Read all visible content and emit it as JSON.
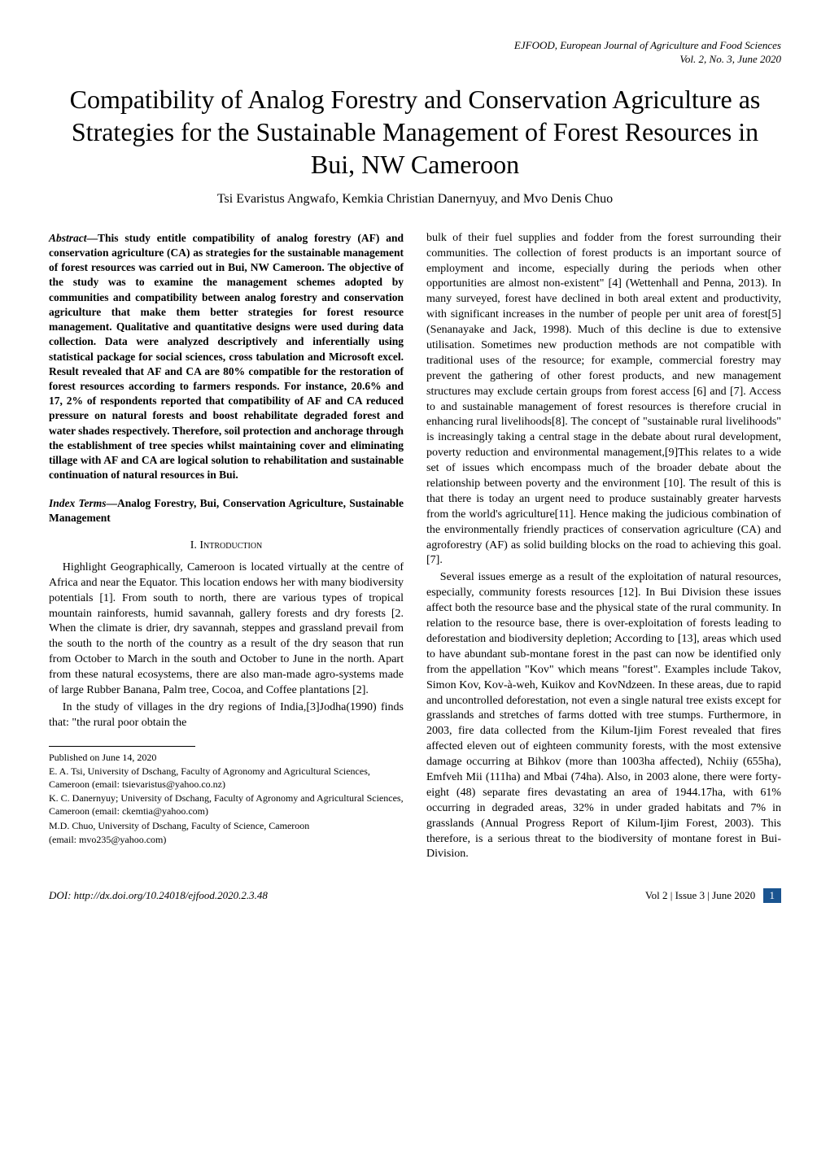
{
  "journal": {
    "name": "EJFOOD, European Journal of Agriculture and Food Sciences",
    "issue": "Vol. 2, No. 3, June 2020"
  },
  "title": "Compatibility of Analog Forestry and Conservation Agriculture as Strategies for the Sustainable Management of Forest Resources in Bui, NW Cameroon",
  "authors": "Tsi Evaristus Angwafo, Kemkia Christian Danernyuy, and Mvo Denis Chuo",
  "abstract": {
    "label": "Abstract",
    "text": "—This study entitle compatibility of analog forestry (AF) and conservation agriculture (CA) as strategies for the sustainable management of forest resources was carried out in Bui, NW Cameroon. The objective of the study was to examine the management schemes adopted by communities and compatibility between analog forestry and conservation agriculture that make them better strategies for forest resource management. Qualitative and quantitative designs were used during data collection. Data were analyzed descriptively and inferentially using statistical package for social sciences, cross tabulation and Microsoft excel. Result revealed that AF and CA are 80% compatible for the restoration of forest resources according to farmers responds. For instance, 20.6% and 17, 2% of respondents reported that compatibility of AF and CA reduced pressure on natural forests and boost rehabilitate degraded forest and water shades respectively. Therefore, soil protection and anchorage through the establishment of tree species whilst maintaining cover and eliminating tillage with AF and CA are logical solution to rehabilitation and sustainable continuation of natural resources in Bui."
  },
  "index_terms": {
    "label": "Index Terms",
    "text": "—Analog Forestry, Bui, Conservation Agriculture, Sustainable Management"
  },
  "section1": {
    "num": "I.",
    "title": "Introduction"
  },
  "intro_p1": "Highlight Geographically, Cameroon is located virtually at the centre of Africa and near the Equator. This location endows her with many biodiversity potentials [1]. From south to north, there are various types of tropical mountain rainforests, humid savannah, gallery forests and dry forests [2. When the climate is drier, dry savannah, steppes and grassland prevail from the south to the north of the country as a result of the dry season that run from October to March in the south and October to June in the north. Apart from these natural ecosystems, there are also man-made agro-systems made of large Rubber Banana, Palm tree, Cocoa, and Coffee plantations [2].",
  "intro_p2": "In the study of villages in the dry regions of India,[3]Jodha(1990) finds that: \"the rural poor obtain the",
  "right_p1": "bulk of their fuel supplies and fodder from the forest surrounding their communities. The collection of forest products is an important source of employment and income, especially during the periods when other opportunities are almost non-existent\" [4] (Wettenhall and Penna, 2013). In many surveyed, forest have declined in both areal extent and productivity, with significant increases in the number of people per unit area of forest[5] (Senanayake and Jack, 1998). Much of this decline is due to extensive utilisation. Sometimes new production methods are not compatible with traditional uses of the resource; for example, commercial forestry may prevent the gathering of other forest products, and new management structures may exclude certain groups from forest access [6] and [7]. Access to and sustainable management of forest resources is therefore crucial in enhancing rural livelihoods[8]. The concept of \"sustainable rural livelihoods\" is increasingly taking a central stage in the debate about rural development, poverty reduction and environmental management,[9]This relates to a wide set of issues which encompass much of the broader debate about the relationship between poverty and the environment [10]. The result of this is that there is today an urgent need to produce sustainably greater harvests from the world's agriculture[11]. Hence making the judicious combination of the environmentally friendly practices of conservation agriculture (CA) and agroforestry (AF) as solid building blocks on the road to achieving this goal. [7].",
  "right_p2": "Several issues emerge as a result of the exploitation of natural resources, especially, community forests resources [12]. In Bui Division these issues affect both the resource base and the physical state of the rural community. In relation to the resource base, there is over-exploitation of forests leading to deforestation and biodiversity depletion; According to [13], areas which used to have abundant sub-montane forest in the past can now be identified only from the appellation \"Kov\" which means \"forest\". Examples include Takov, Simon Kov, Kov-à-weh, Kuikov and KovNdzeen. In these areas, due to rapid and uncontrolled deforestation, not even a single natural tree exists except for grasslands and stretches of farms dotted with tree stumps. Furthermore, in 2003, fire data collected from the Kilum-Ijim Forest revealed that fires affected eleven out of eighteen community forests, with the most extensive damage occurring at Bihkov (more than 1003ha affected), Nchiiy (655ha), Emfveh Mii (111ha) and Mbai (74ha). Also, in 2003 alone, there were forty-eight (48) separate fires devastating an area of 1944.17ha, with 61% occurring in degraded areas, 32% in under graded habitats and 7% in grasslands (Annual Progress Report of Kilum-Ijim Forest, 2003). This therefore, is a serious threat to the biodiversity of montane forest in Bui-Division.",
  "footnotes": {
    "published": "Published on June 14, 2020",
    "auth1": "E. A. Tsi, University of Dschang, Faculty of Agronomy and Agricultural Sciences, Cameroon (email: tsievaristus@yahoo.co.nz)",
    "auth2": "K. C. Danernyuy; University of Dschang, Faculty of Agronomy and Agricultural Sciences, Cameroon (email: ckemtia@yahoo.com)",
    "auth3": "M.D. Chuo, University of Dschang, Faculty of Science, Cameroon",
    "auth3b": "(email: mvo235@yahoo.com)"
  },
  "footer": {
    "doi": "DOI: http://dx.doi.org/10.24018/ejfood.2020.2.3.48",
    "issue": "Vol 2 | Issue 3 | June 2020",
    "page": "1"
  }
}
